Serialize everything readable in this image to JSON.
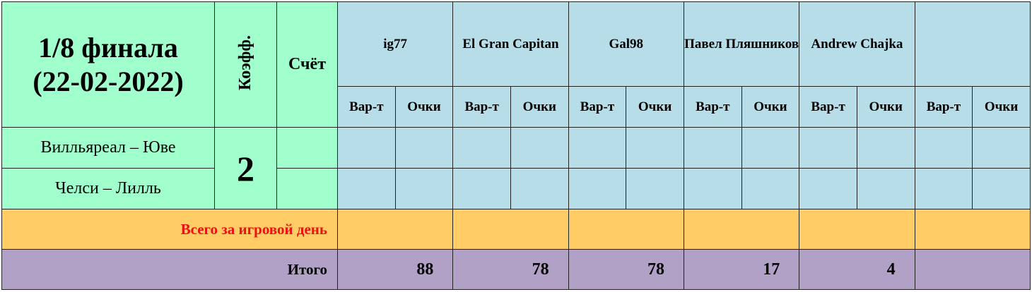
{
  "header": {
    "title_line1": "1/8 финала",
    "title_line2": "(22-02-2022)",
    "coef": "Коэфф.",
    "score": "Счёт",
    "players": [
      "ig77",
      "El Gran Capitan",
      "Gal98",
      "Павел Пляшников",
      "Andrew Chajka"
    ],
    "sub_headers": [
      "Вар-т",
      "Очки"
    ]
  },
  "matches": [
    "Вилльяреал – Юве",
    "Челси – Лилль"
  ],
  "coefficient": 2,
  "day_total_label": "Всего за игровой день",
  "total_label": "Итого",
  "totals": [
    88,
    78,
    78,
    17,
    4
  ]
}
